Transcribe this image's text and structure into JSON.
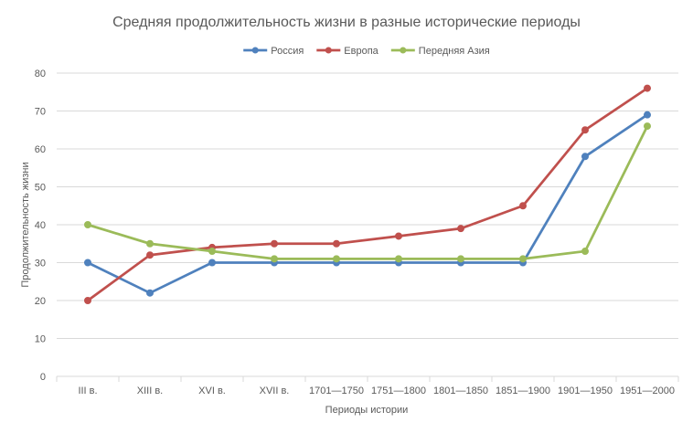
{
  "chart_data": {
    "type": "line",
    "title": "Средняя продолжительность жизни в разные исторические периоды",
    "xlabel": "Периоды истории",
    "ylabel": "Продолжительность жизни",
    "categories": [
      "III в.",
      "XIII в.",
      "XVI в.",
      "XVII в.",
      "1701—1750",
      "1751—1800",
      "1801—1850",
      "1851—1900",
      "1901—1950",
      "1951—2000"
    ],
    "ylim": [
      0,
      80
    ],
    "yticks": [
      0,
      10,
      20,
      30,
      40,
      50,
      60,
      70,
      80
    ],
    "grid": true,
    "legend_position": "top",
    "series": [
      {
        "name": "Россия",
        "color": "#4f81bd",
        "values": [
          30,
          22,
          30,
          30,
          30,
          30,
          30,
          30,
          58,
          69
        ]
      },
      {
        "name": "Европа",
        "color": "#c0504d",
        "values": [
          20,
          32,
          34,
          35,
          35,
          37,
          39,
          45,
          65,
          76
        ]
      },
      {
        "name": "Передняя Азия",
        "color": "#9bbb59",
        "values": [
          40,
          35,
          33,
          31,
          31,
          31,
          31,
          31,
          33,
          66
        ]
      }
    ]
  }
}
